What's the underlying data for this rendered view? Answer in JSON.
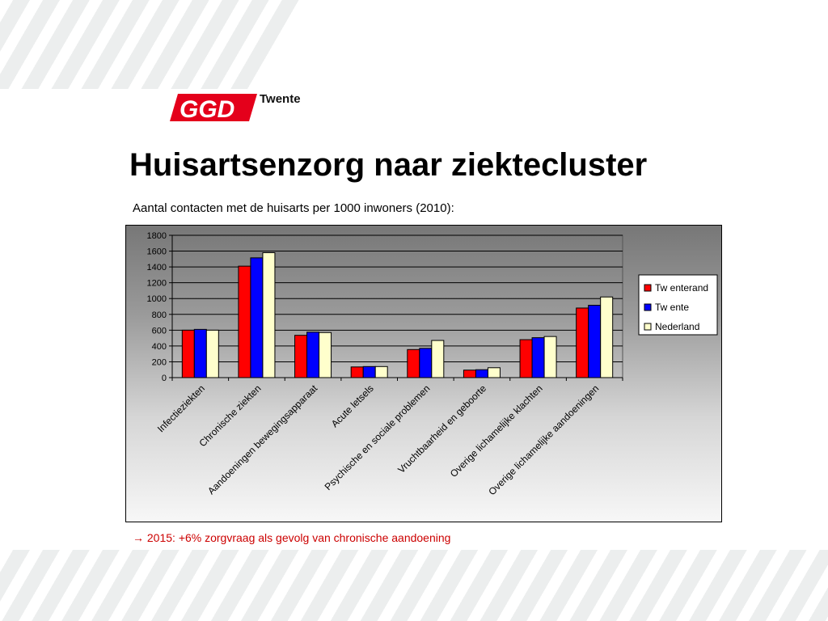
{
  "logo": {
    "text": "Twente",
    "brand_color": "#e4001b"
  },
  "title": "Huisartsenzorg naar ziektecluster",
  "subtitle": "Aantal contacten met de huisarts per 1000 inwoners (2010):",
  "footnote": {
    "arrow": "→",
    "text": " 2015: +6% zorgvraag als gevolg van chronische aandoening"
  },
  "chart_data": {
    "type": "bar",
    "title": "",
    "xlabel": "",
    "ylabel": "",
    "ylim": [
      0,
      1800
    ],
    "yticks": [
      0,
      200,
      400,
      600,
      800,
      1000,
      1200,
      1400,
      1600,
      1800
    ],
    "grid": true,
    "legend_position": "right",
    "categories": [
      "Infectieziekten",
      "Chronische ziekten",
      "Aandoeningen bewegingsapparaat",
      "Acute letsels",
      "Psychische en sociale problemen",
      "Vruchtbaarheid en geboorte",
      "Overige lichamelijke klachten",
      "Overige lichamelijke aandoeningen"
    ],
    "series": [
      {
        "name": "Tw enterand",
        "color": "#ff0000",
        "values": [
          600,
          1410,
          535,
          135,
          355,
          95,
          480,
          880
        ]
      },
      {
        "name": "Tw ente",
        "color": "#0000ff",
        "values": [
          610,
          1515,
          575,
          140,
          370,
          100,
          505,
          915
        ]
      },
      {
        "name": "Nederland",
        "color": "#ffffcc",
        "values": [
          600,
          1580,
          570,
          140,
          470,
          125,
          520,
          1020
        ]
      }
    ]
  }
}
